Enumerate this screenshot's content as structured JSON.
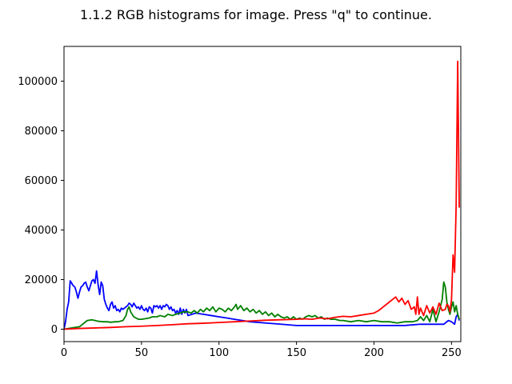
{
  "window": {
    "title": "1.1.2 RGB histograms for image. Press \"q\" to continue."
  },
  "chart_data": {
    "type": "line",
    "title": "1.1.2 RGB histograms for image. Press \"q\" to continue.",
    "xlabel": "",
    "ylabel": "",
    "xlim": [
      0,
      256
    ],
    "ylim": [
      -5000,
      114000
    ],
    "xticks": [
      0,
      50,
      100,
      150,
      200,
      250
    ],
    "yticks": [
      0,
      20000,
      40000,
      60000,
      80000,
      100000
    ],
    "grid": false,
    "legend": "none",
    "series": [
      {
        "color": "#0000ff",
        "points": [
          [
            0,
            0
          ],
          [
            1,
            3000
          ],
          [
            2,
            8000
          ],
          [
            3,
            11000
          ],
          [
            4,
            19500
          ],
          [
            5,
            18500
          ],
          [
            6,
            17500
          ],
          [
            7,
            17000
          ],
          [
            8,
            15000
          ],
          [
            9,
            12500
          ],
          [
            10,
            15000
          ],
          [
            11,
            17000
          ],
          [
            12,
            17500
          ],
          [
            13,
            18500
          ],
          [
            14,
            19000
          ],
          [
            15,
            17000
          ],
          [
            16,
            15500
          ],
          [
            17,
            17500
          ],
          [
            18,
            19500
          ],
          [
            19,
            20000
          ],
          [
            20,
            18500
          ],
          [
            21,
            23500
          ],
          [
            22,
            18000
          ],
          [
            23,
            14000
          ],
          [
            24,
            19000
          ],
          [
            25,
            17500
          ],
          [
            26,
            12000
          ],
          [
            27,
            10000
          ],
          [
            28,
            8500
          ],
          [
            29,
            7500
          ],
          [
            30,
            10000
          ],
          [
            31,
            11000
          ],
          [
            32,
            8500
          ],
          [
            33,
            9500
          ],
          [
            34,
            7500
          ],
          [
            35,
            8000
          ],
          [
            36,
            7000
          ],
          [
            37,
            8500
          ],
          [
            38,
            8000
          ],
          [
            39,
            8500
          ],
          [
            40,
            9000
          ],
          [
            41,
            9500
          ],
          [
            42,
            10500
          ],
          [
            43,
            10000
          ],
          [
            44,
            9000
          ],
          [
            45,
            10500
          ],
          [
            46,
            9500
          ],
          [
            47,
            8500
          ],
          [
            48,
            9000
          ],
          [
            49,
            8000
          ],
          [
            50,
            9500
          ],
          [
            51,
            8000
          ],
          [
            52,
            7500
          ],
          [
            53,
            8500
          ],
          [
            54,
            7000
          ],
          [
            55,
            9000
          ],
          [
            56,
            8500
          ],
          [
            57,
            6500
          ],
          [
            58,
            9500
          ],
          [
            59,
            9000
          ],
          [
            60,
            9500
          ],
          [
            61,
            8500
          ],
          [
            62,
            9500
          ],
          [
            63,
            8000
          ],
          [
            64,
            9500
          ],
          [
            65,
            9000
          ],
          [
            66,
            10000
          ],
          [
            67,
            9500
          ],
          [
            68,
            8000
          ],
          [
            69,
            9000
          ],
          [
            70,
            7500
          ],
          [
            71,
            8000
          ],
          [
            72,
            6500
          ],
          [
            73,
            7500
          ],
          [
            74,
            6000
          ],
          [
            75,
            8500
          ],
          [
            76,
            6000
          ],
          [
            77,
            8000
          ],
          [
            78,
            6500
          ],
          [
            79,
            8000
          ],
          [
            80,
            5500
          ],
          [
            85,
            6500
          ],
          [
            90,
            6000
          ],
          [
            95,
            5500
          ],
          [
            100,
            5000
          ],
          [
            105,
            4500
          ],
          [
            110,
            4000
          ],
          [
            115,
            3500
          ],
          [
            120,
            3000
          ],
          [
            130,
            2500
          ],
          [
            140,
            2000
          ],
          [
            150,
            1500
          ],
          [
            160,
            1500
          ],
          [
            170,
            1500
          ],
          [
            180,
            1500
          ],
          [
            190,
            1500
          ],
          [
            200,
            1500
          ],
          [
            210,
            1500
          ],
          [
            220,
            1500
          ],
          [
            230,
            2000
          ],
          [
            235,
            2000
          ],
          [
            240,
            2000
          ],
          [
            245,
            2000
          ],
          [
            248,
            3500
          ],
          [
            250,
            3000
          ],
          [
            252,
            2000
          ],
          [
            253,
            5000
          ],
          [
            254,
            6000
          ],
          [
            255,
            3500
          ]
        ]
      },
      {
        "color": "#008000",
        "points": [
          [
            0,
            0
          ],
          [
            5,
            500
          ],
          [
            10,
            1000
          ],
          [
            12,
            2000
          ],
          [
            15,
            3500
          ],
          [
            18,
            3800
          ],
          [
            20,
            3500
          ],
          [
            22,
            3200
          ],
          [
            25,
            3000
          ],
          [
            28,
            3000
          ],
          [
            30,
            2800
          ],
          [
            33,
            3000
          ],
          [
            35,
            3000
          ],
          [
            38,
            3500
          ],
          [
            40,
            5500
          ],
          [
            41,
            8000
          ],
          [
            42,
            9000
          ],
          [
            43,
            7000
          ],
          [
            45,
            5000
          ],
          [
            48,
            4000
          ],
          [
            50,
            4000
          ],
          [
            52,
            4200
          ],
          [
            55,
            4500
          ],
          [
            57,
            5000
          ],
          [
            60,
            5000
          ],
          [
            62,
            5500
          ],
          [
            65,
            5000
          ],
          [
            67,
            6000
          ],
          [
            70,
            5500
          ],
          [
            72,
            6000
          ],
          [
            75,
            6500
          ],
          [
            77,
            7000
          ],
          [
            80,
            7000
          ],
          [
            82,
            6500
          ],
          [
            84,
            7500
          ],
          [
            86,
            6500
          ],
          [
            88,
            8000
          ],
          [
            90,
            7000
          ],
          [
            92,
            8500
          ],
          [
            94,
            7500
          ],
          [
            96,
            9000
          ],
          [
            98,
            7000
          ],
          [
            100,
            8500
          ],
          [
            102,
            8000
          ],
          [
            104,
            7000
          ],
          [
            106,
            8500
          ],
          [
            108,
            7500
          ],
          [
            110,
            9000
          ],
          [
            111,
            10000
          ],
          [
            112,
            8000
          ],
          [
            114,
            9500
          ],
          [
            116,
            7500
          ],
          [
            118,
            8500
          ],
          [
            120,
            7000
          ],
          [
            122,
            8000
          ],
          [
            124,
            6500
          ],
          [
            126,
            7500
          ],
          [
            128,
            6000
          ],
          [
            130,
            7000
          ],
          [
            132,
            5500
          ],
          [
            134,
            6500
          ],
          [
            136,
            5000
          ],
          [
            138,
            6000
          ],
          [
            140,
            5000
          ],
          [
            142,
            4500
          ],
          [
            144,
            5000
          ],
          [
            146,
            4000
          ],
          [
            148,
            5000
          ],
          [
            150,
            4000
          ],
          [
            152,
            4500
          ],
          [
            154,
            4000
          ],
          [
            156,
            5000
          ],
          [
            158,
            5500
          ],
          [
            160,
            5000
          ],
          [
            162,
            5500
          ],
          [
            164,
            4500
          ],
          [
            166,
            5000
          ],
          [
            168,
            4000
          ],
          [
            170,
            4500
          ],
          [
            172,
            4000
          ],
          [
            175,
            4000
          ],
          [
            178,
            3500
          ],
          [
            180,
            3500
          ],
          [
            185,
            3000
          ],
          [
            190,
            3500
          ],
          [
            195,
            3000
          ],
          [
            200,
            3500
          ],
          [
            205,
            3000
          ],
          [
            210,
            3000
          ],
          [
            215,
            2500
          ],
          [
            220,
            3000
          ],
          [
            225,
            3000
          ],
          [
            228,
            3500
          ],
          [
            230,
            5000
          ],
          [
            232,
            3500
          ],
          [
            234,
            5500
          ],
          [
            236,
            3000
          ],
          [
            238,
            8000
          ],
          [
            240,
            3000
          ],
          [
            242,
            7000
          ],
          [
            244,
            12000
          ],
          [
            245,
            19000
          ],
          [
            246,
            17000
          ],
          [
            247,
            11000
          ],
          [
            248,
            8000
          ],
          [
            249,
            6000
          ],
          [
            250,
            9000
          ],
          [
            251,
            11000
          ],
          [
            252,
            7000
          ],
          [
            253,
            9500
          ],
          [
            254,
            6000
          ],
          [
            255,
            4000
          ]
        ]
      },
      {
        "color": "#ff0000",
        "points": [
          [
            0,
            0
          ],
          [
            10,
            300
          ],
          [
            20,
            500
          ],
          [
            30,
            700
          ],
          [
            40,
            1000
          ],
          [
            50,
            1200
          ],
          [
            60,
            1500
          ],
          [
            70,
            1800
          ],
          [
            80,
            2200
          ],
          [
            90,
            2400
          ],
          [
            100,
            2700
          ],
          [
            110,
            3000
          ],
          [
            120,
            3300
          ],
          [
            130,
            3600
          ],
          [
            140,
            3800
          ],
          [
            150,
            4000
          ],
          [
            155,
            4200
          ],
          [
            160,
            4000
          ],
          [
            165,
            4500
          ],
          [
            170,
            4200
          ],
          [
            175,
            4800
          ],
          [
            180,
            5200
          ],
          [
            185,
            5000
          ],
          [
            190,
            5500
          ],
          [
            195,
            6000
          ],
          [
            200,
            6500
          ],
          [
            203,
            7500
          ],
          [
            206,
            9000
          ],
          [
            208,
            10000
          ],
          [
            210,
            11000
          ],
          [
            212,
            12000
          ],
          [
            214,
            13000
          ],
          [
            216,
            11000
          ],
          [
            218,
            12500
          ],
          [
            220,
            10000
          ],
          [
            222,
            11500
          ],
          [
            224,
            8000
          ],
          [
            226,
            9000
          ],
          [
            227,
            6000
          ],
          [
            228,
            13000
          ],
          [
            229,
            6000
          ],
          [
            230,
            8500
          ],
          [
            232,
            5500
          ],
          [
            234,
            9500
          ],
          [
            236,
            6500
          ],
          [
            238,
            9000
          ],
          [
            240,
            6000
          ],
          [
            242,
            10500
          ],
          [
            244,
            7500
          ],
          [
            246,
            8000
          ],
          [
            247,
            10000
          ],
          [
            248,
            9500
          ],
          [
            249,
            7000
          ],
          [
            250,
            12000
          ],
          [
            251,
            30000
          ],
          [
            252,
            23000
          ],
          [
            253,
            50000
          ],
          [
            254,
            108000
          ],
          [
            255,
            49000
          ]
        ]
      }
    ]
  }
}
